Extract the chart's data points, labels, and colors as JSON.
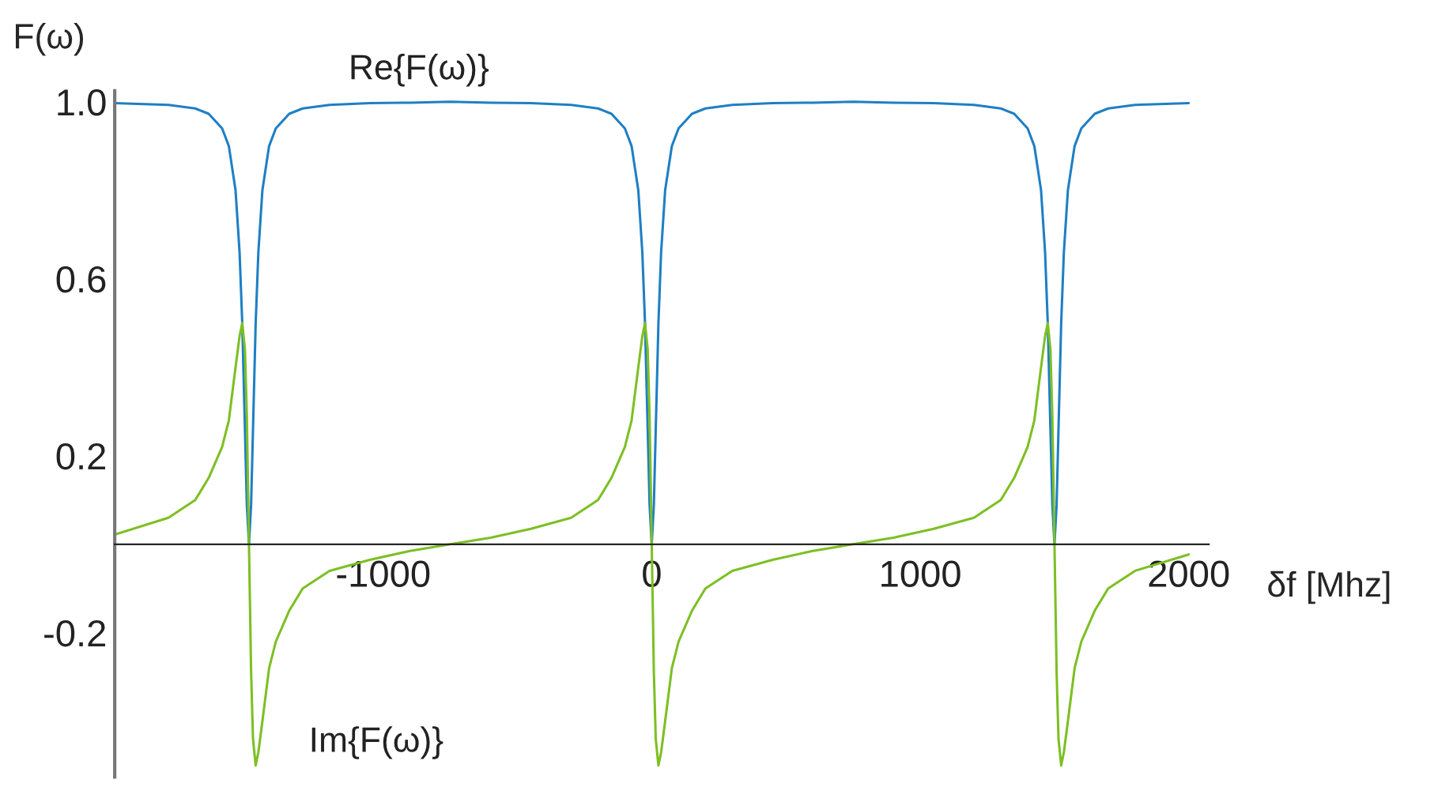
{
  "chart_data": {
    "type": "line",
    "xlabel": "δf [Mhz]",
    "ylabel": "F(ω)",
    "x": [
      -2000,
      -1800,
      -1700,
      -1650,
      -1600,
      -1575,
      -1550,
      -1535,
      -1525,
      -1515,
      -1508,
      -1500,
      -1492,
      -1485,
      -1475,
      -1465,
      -1450,
      -1425,
      -1400,
      -1350,
      -1300,
      -1200,
      -1050,
      -900,
      -750,
      -600,
      -450,
      -300,
      -200,
      -150,
      -100,
      -75,
      -50,
      -35,
      -25,
      -15,
      -8,
      0,
      8,
      15,
      25,
      35,
      50,
      75,
      100,
      150,
      200,
      300,
      450,
      600,
      750,
      900,
      1050,
      1200,
      1300,
      1350,
      1400,
      1425,
      1450,
      1465,
      1475,
      1485,
      1492,
      1500,
      1508,
      1515,
      1525,
      1535,
      1550,
      1575,
      1600,
      1650,
      1700,
      1800,
      2000
    ],
    "series": [
      {
        "name": "Re{F(ω)}",
        "color": "#1f7fc4",
        "values": [
          0.997,
          0.993,
          0.985,
          0.973,
          0.94,
          0.9,
          0.8,
          0.66,
          0.5,
          0.26,
          0.09,
          0,
          0.09,
          0.26,
          0.5,
          0.66,
          0.8,
          0.9,
          0.94,
          0.973,
          0.985,
          0.993,
          0.997,
          0.998,
          1.0,
          0.998,
          0.997,
          0.993,
          0.985,
          0.973,
          0.94,
          0.9,
          0.8,
          0.66,
          0.5,
          0.26,
          0.09,
          0,
          0.09,
          0.26,
          0.5,
          0.66,
          0.8,
          0.9,
          0.94,
          0.973,
          0.985,
          0.993,
          0.997,
          0.998,
          1.0,
          0.998,
          0.997,
          0.993,
          0.985,
          0.973,
          0.94,
          0.9,
          0.8,
          0.66,
          0.5,
          0.26,
          0.09,
          0,
          0.09,
          0.26,
          0.5,
          0.66,
          0.8,
          0.9,
          0.94,
          0.973,
          0.985,
          0.993,
          0.997
        ]
      },
      {
        "name": "Im{F(ω)}",
        "color": "#7dbf24",
        "values": [
          0.022,
          0.06,
          0.1,
          0.15,
          0.22,
          0.28,
          0.4,
          0.47,
          0.5,
          0.44,
          0.29,
          0,
          -0.29,
          -0.44,
          -0.5,
          -0.47,
          -0.4,
          -0.28,
          -0.22,
          -0.15,
          -0.1,
          -0.06,
          -0.035,
          -0.015,
          0,
          0.015,
          0.035,
          0.06,
          0.1,
          0.15,
          0.22,
          0.28,
          0.4,
          0.47,
          0.5,
          0.44,
          0.29,
          0,
          -0.29,
          -0.44,
          -0.5,
          -0.47,
          -0.4,
          -0.28,
          -0.22,
          -0.15,
          -0.1,
          -0.06,
          -0.035,
          -0.015,
          0,
          0.015,
          0.035,
          0.06,
          0.1,
          0.15,
          0.22,
          0.28,
          0.4,
          0.47,
          0.5,
          0.44,
          0.29,
          0,
          -0.29,
          -0.44,
          -0.5,
          -0.47,
          -0.4,
          -0.28,
          -0.22,
          -0.15,
          -0.1,
          -0.06,
          -0.023
        ]
      }
    ],
    "xlim": [
      -2000,
      2075
    ],
    "xticks": [
      -1000,
      0,
      1000,
      2000
    ],
    "ylim": [
      -0.526,
      1.025
    ],
    "yticks": [
      {
        "value": 1.0,
        "label": "1.0"
      },
      {
        "value": 0.6,
        "label": "0.6"
      },
      {
        "value": 0.2,
        "label": "0.2"
      },
      {
        "value": -0.2,
        "label": "-0.2"
      }
    ],
    "grid": false,
    "legend": false,
    "marker": "none",
    "line_style": "solid"
  }
}
